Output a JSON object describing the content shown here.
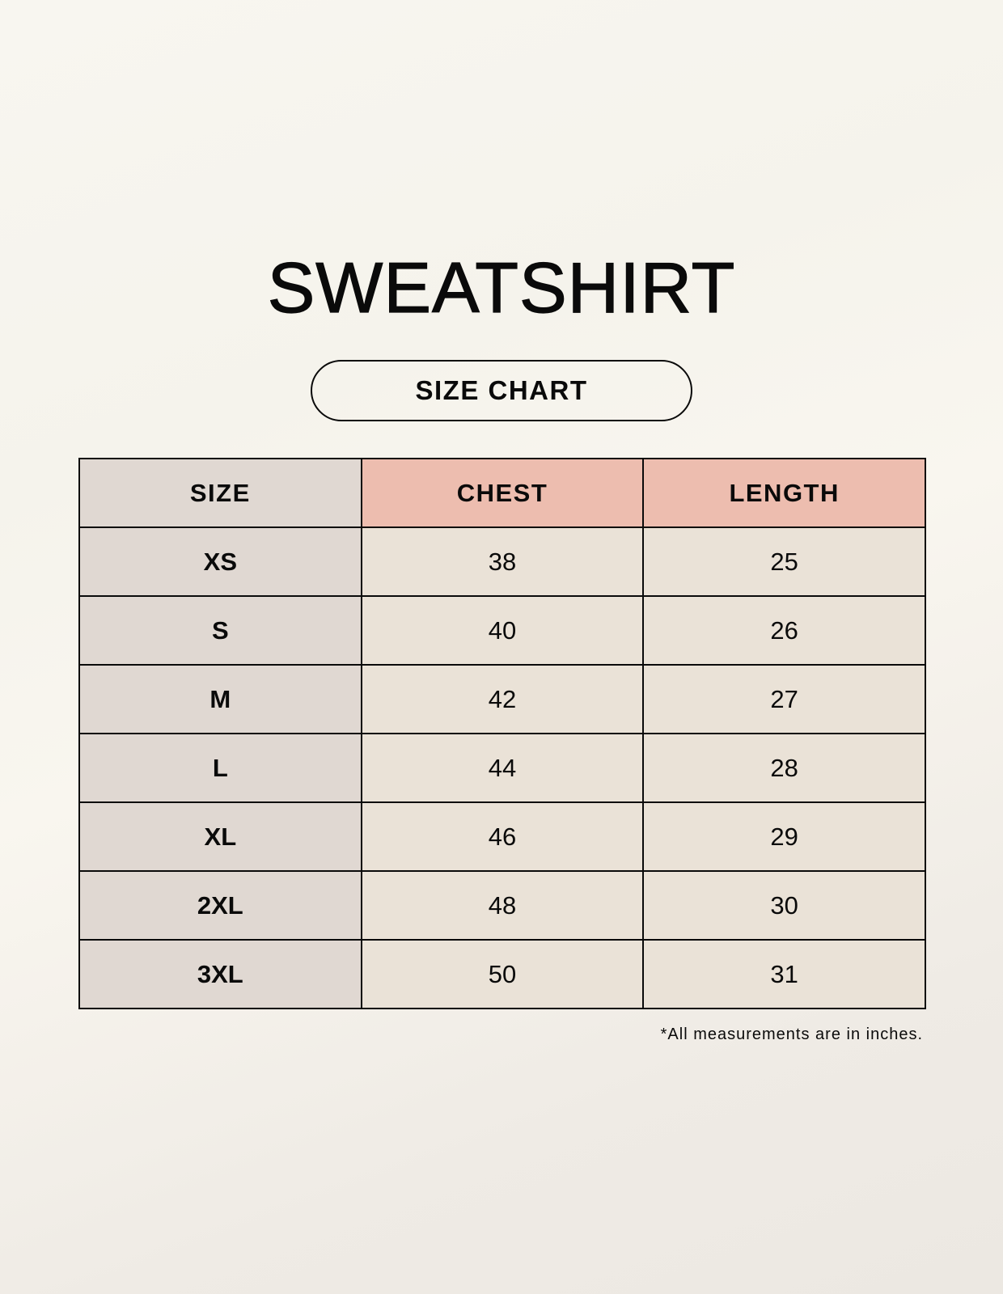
{
  "title": "SWEATSHIRT",
  "subtitle": "SIZE CHART",
  "table": {
    "headers": [
      "SIZE",
      "CHEST",
      "LENGTH"
    ],
    "rows": [
      [
        "XS",
        "38",
        "25"
      ],
      [
        "S",
        "40",
        "26"
      ],
      [
        "M",
        "42",
        "27"
      ],
      [
        "L",
        "44",
        "28"
      ],
      [
        "XL",
        "46",
        "29"
      ],
      [
        "2XL",
        "48",
        "30"
      ],
      [
        "3XL",
        "50",
        "31"
      ]
    ]
  },
  "footnote": "*All measurements are in inches.",
  "colors": {
    "size_column": "#e0d8d2",
    "header_accent": "#edbdaf",
    "value_cells": "#eae2d7"
  }
}
